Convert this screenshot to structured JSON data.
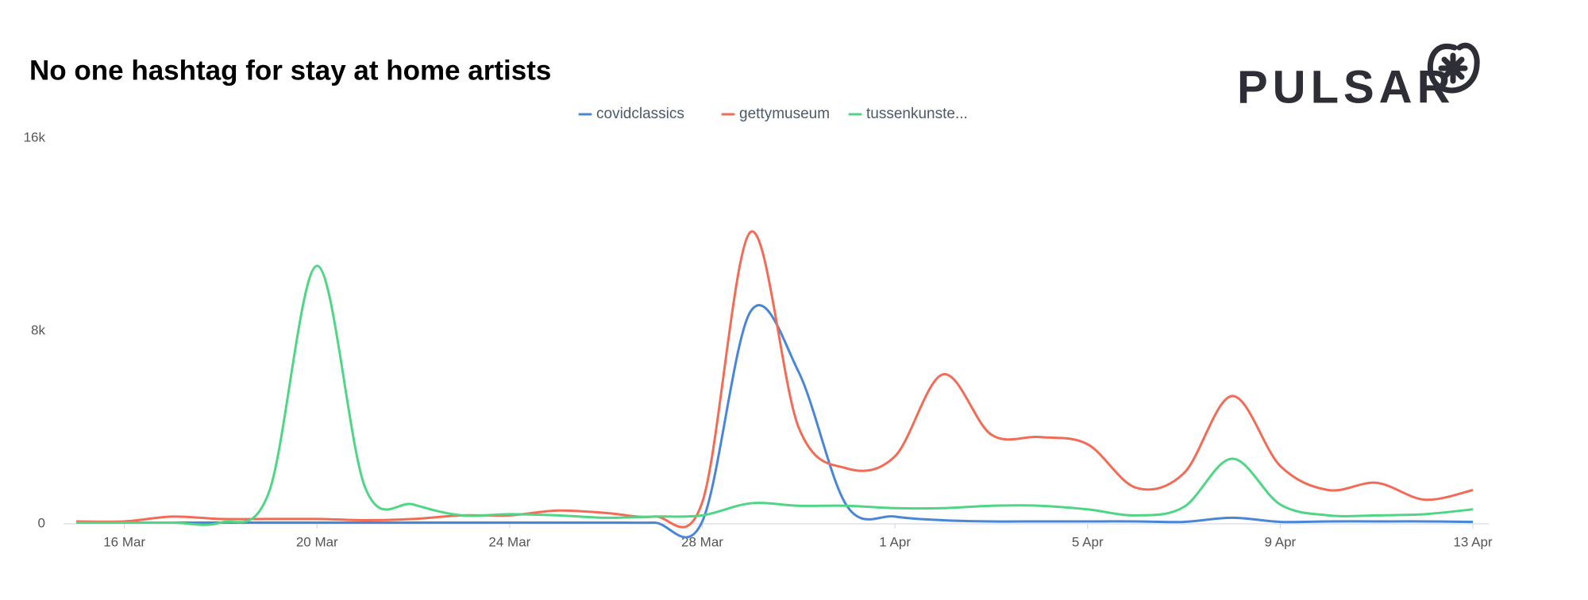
{
  "chart_data": {
    "type": "line",
    "title": "No one hashtag for stay at home artists",
    "brand": "PULSAR",
    "categories": [
      null,
      "16 Mar",
      null,
      null,
      null,
      "20 Mar",
      null,
      null,
      null,
      "24 Mar",
      null,
      null,
      null,
      "28 Mar",
      null,
      null,
      null,
      "1 Apr",
      null,
      null,
      null,
      "5 Apr",
      null,
      null,
      null,
      "9 Apr",
      null,
      null,
      null,
      "13 Apr"
    ],
    "series": [
      {
        "name": "covidclassics",
        "color": "#4a86d8",
        "values": [
          50,
          50,
          50,
          50,
          50,
          50,
          50,
          50,
          50,
          50,
          50,
          50,
          50,
          100,
          8800,
          6300,
          750,
          300,
          150,
          100,
          100,
          100,
          100,
          80,
          250,
          80,
          100,
          100,
          100,
          80
        ]
      },
      {
        "name": "gettymuseum",
        "color": "#f26b57",
        "values": [
          100,
          100,
          300,
          200,
          200,
          200,
          150,
          200,
          350,
          350,
          550,
          450,
          300,
          900,
          12100,
          4000,
          2300,
          2800,
          6200,
          3700,
          3600,
          3300,
          1500,
          2100,
          5300,
          2400,
          1400,
          1700,
          1000,
          1400
        ]
      },
      {
        "name": "tussenkunste...",
        "color": "#4fd684",
        "values": [
          50,
          50,
          50,
          50,
          1300,
          10700,
          1500,
          800,
          350,
          400,
          350,
          250,
          300,
          350,
          850,
          750,
          750,
          650,
          650,
          750,
          750,
          600,
          350,
          700,
          2700,
          800,
          350,
          350,
          400,
          600
        ]
      }
    ],
    "ylim": [
      0,
      16000
    ],
    "yticks": [
      0,
      {
        "value": 8000,
        "label": "8k"
      },
      {
        "value": 16000,
        "label": "16k"
      }
    ]
  }
}
